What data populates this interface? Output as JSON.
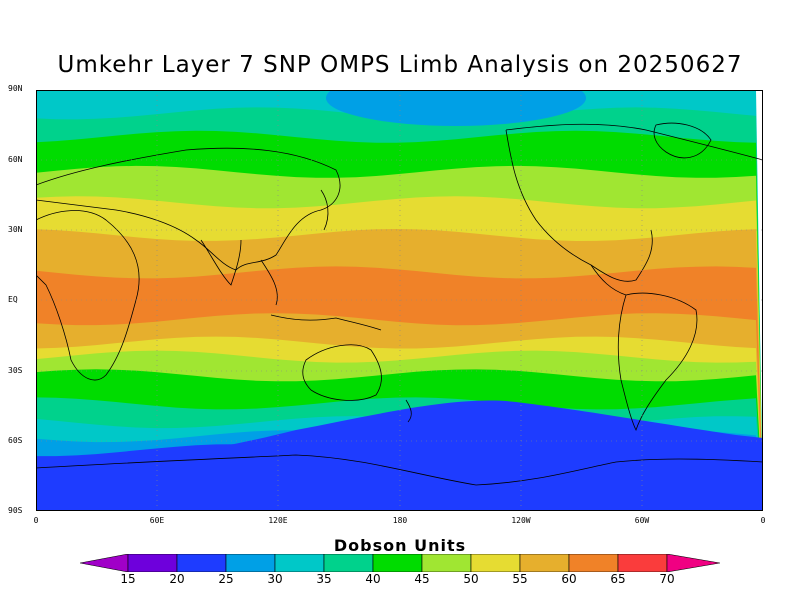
{
  "title": "Umkehr Layer 7 SNP OMPS Limb Analysis on 20250627",
  "lat_labels": [
    "90N",
    "60N",
    "30N",
    "EQ",
    "30S",
    "60S",
    "90S"
  ],
  "lon_labels": [
    "0",
    "60E",
    "120E",
    "180",
    "120W",
    "60W",
    "0"
  ],
  "colorbar": {
    "title": "Dobson Units",
    "tick_labels": [
      "15",
      "20",
      "25",
      "30",
      "35",
      "40",
      "45",
      "50",
      "55",
      "60",
      "65",
      "70"
    ],
    "colors": [
      "#a000c8",
      "#6e00dc",
      "#1e3cff",
      "#00a0e6",
      "#00c8c8",
      "#00d28c",
      "#00dc00",
      "#a0e632",
      "#e6dc32",
      "#e6af2d",
      "#f08228",
      "#fa3c3c",
      "#f00082"
    ]
  },
  "map_bands": [
    {
      "lat": 90,
      "color": "#00c8c8"
    },
    {
      "lat": 80,
      "color": "#00d28c"
    },
    {
      "lat": 70,
      "color": "#00dc00"
    },
    {
      "lat": 55,
      "color": "#a0e632"
    },
    {
      "lat": 42,
      "color": "#e6dc32"
    },
    {
      "lat": 28,
      "color": "#e6af2d"
    },
    {
      "lat": 12,
      "color": "#f08228"
    },
    {
      "lat": -8,
      "color": "#e6af2d"
    },
    {
      "lat": -18,
      "color": "#e6dc32"
    },
    {
      "lat": -24,
      "color": "#a0e632"
    },
    {
      "lat": -32,
      "color": "#00dc00"
    },
    {
      "lat": -44,
      "color": "#00d28c"
    },
    {
      "lat": -52,
      "color": "#00c8c8"
    },
    {
      "lat": -58,
      "color": "#00a0e6"
    },
    {
      "lat": -64,
      "color": "#1e3cff"
    }
  ]
}
